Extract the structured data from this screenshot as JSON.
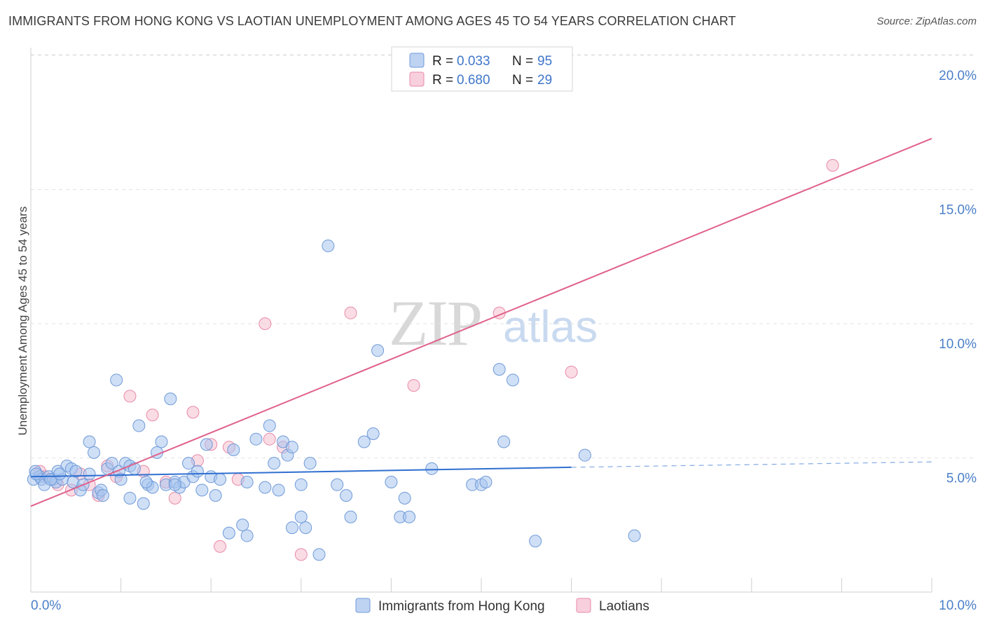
{
  "title": "IMMIGRANTS FROM HONG KONG VS LAOTIAN UNEMPLOYMENT AMONG AGES 45 TO 54 YEARS CORRELATION CHART",
  "source": "Source: ZipAtlas.com",
  "watermark": {
    "zip": "ZIP",
    "atlas": "atlas"
  },
  "colors": {
    "blue_fill": "#a8c4ee",
    "blue_stroke": "#6f9ad8",
    "blue_line": "#2f6fd0",
    "pink_fill": "#f6bfd0",
    "pink_stroke": "#e88aa8",
    "pink_line": "#e0608c",
    "tick_text": "#4a7fc8",
    "grid": "#e2e2e2"
  },
  "legend": {
    "blue": {
      "r_label": "R =",
      "r_value": "0.033",
      "n_label": "N =",
      "n_value": "95"
    },
    "pink": {
      "r_label": "R =",
      "r_value": "0.680",
      "n_label": "N =",
      "n_value": "29"
    }
  },
  "bottom_legend": {
    "blue": "Immigrants from Hong Kong",
    "pink": "Laotians"
  },
  "chart_data": {
    "type": "scatter",
    "title": "IMMIGRANTS FROM HONG KONG VS LAOTIAN UNEMPLOYMENT AMONG AGES 45 TO 54 YEARS CORRELATION CHART",
    "xlabel": "",
    "ylabel": "Unemployment Among Ages 45 to 54 years",
    "xlim": [
      0,
      10
    ],
    "ylim": [
      0,
      20.5
    ],
    "x_tick_labels": [
      "0.0%",
      "10.0%"
    ],
    "y_ticks": [
      5,
      10,
      15,
      20
    ],
    "y_tick_labels": [
      "5.0%",
      "10.0%",
      "15.0%",
      "20.0%"
    ],
    "grid": true,
    "series": [
      {
        "name": "Immigrants from Hong Kong",
        "R": 0.033,
        "N": 95,
        "trend": {
          "x0": 0,
          "y0": 4.3,
          "x1": 6.0,
          "y1": 4.65,
          "dash_to_x": 11,
          "dash_to_y": 4.9
        },
        "points": [
          [
            0.03,
            4.2
          ],
          [
            0.05,
            4.5
          ],
          [
            0.1,
            4.3
          ],
          [
            0.12,
            4.2
          ],
          [
            0.15,
            4.0
          ],
          [
            0.2,
            4.3
          ],
          [
            0.25,
            4.2
          ],
          [
            0.28,
            4.1
          ],
          [
            0.3,
            4.5
          ],
          [
            0.35,
            4.2
          ],
          [
            0.4,
            4.7
          ],
          [
            0.45,
            4.6
          ],
          [
            0.47,
            4.1
          ],
          [
            0.5,
            4.5
          ],
          [
            0.55,
            3.8
          ],
          [
            0.58,
            4.0
          ],
          [
            0.65,
            5.6
          ],
          [
            0.7,
            5.2
          ],
          [
            0.75,
            3.7
          ],
          [
            0.78,
            3.8
          ],
          [
            0.8,
            3.6
          ],
          [
            0.85,
            4.6
          ],
          [
            0.9,
            4.8
          ],
          [
            0.95,
            7.9
          ],
          [
            0.98,
            4.5
          ],
          [
            1.0,
            4.2
          ],
          [
            1.05,
            4.8
          ],
          [
            1.1,
            3.5
          ],
          [
            1.1,
            4.7
          ],
          [
            1.15,
            4.6
          ],
          [
            1.2,
            6.2
          ],
          [
            1.25,
            3.3
          ],
          [
            1.3,
            4.0
          ],
          [
            1.35,
            3.9
          ],
          [
            1.4,
            5.2
          ],
          [
            1.45,
            5.6
          ],
          [
            1.5,
            4.0
          ],
          [
            1.55,
            7.2
          ],
          [
            1.6,
            4.1
          ],
          [
            1.65,
            3.9
          ],
          [
            1.7,
            4.1
          ],
          [
            1.75,
            4.8
          ],
          [
            1.8,
            4.3
          ],
          [
            1.85,
            4.5
          ],
          [
            1.9,
            3.8
          ],
          [
            1.95,
            5.5
          ],
          [
            2.0,
            4.3
          ],
          [
            2.05,
            3.6
          ],
          [
            2.1,
            4.2
          ],
          [
            2.2,
            2.2
          ],
          [
            2.25,
            5.3
          ],
          [
            2.35,
            2.5
          ],
          [
            2.4,
            4.1
          ],
          [
            2.5,
            5.7
          ],
          [
            2.6,
            3.9
          ],
          [
            2.65,
            6.2
          ],
          [
            2.7,
            4.8
          ],
          [
            2.75,
            3.8
          ],
          [
            2.8,
            5.6
          ],
          [
            2.85,
            5.1
          ],
          [
            2.9,
            5.4
          ],
          [
            3.0,
            2.8
          ],
          [
            3.05,
            2.4
          ],
          [
            3.1,
            4.8
          ],
          [
            3.2,
            1.4
          ],
          [
            3.3,
            12.9
          ],
          [
            3.4,
            4.0
          ],
          [
            3.5,
            3.6
          ],
          [
            3.55,
            2.8
          ],
          [
            3.7,
            5.6
          ],
          [
            3.8,
            5.9
          ],
          [
            3.85,
            9.0
          ],
          [
            4.0,
            4.1
          ],
          [
            4.1,
            2.8
          ],
          [
            4.15,
            3.5
          ],
          [
            4.2,
            2.8
          ],
          [
            4.45,
            4.6
          ],
          [
            4.9,
            4.0
          ],
          [
            5.0,
            4.0
          ],
          [
            5.05,
            4.1
          ],
          [
            5.2,
            8.3
          ],
          [
            5.25,
            5.6
          ],
          [
            5.35,
            7.9
          ],
          [
            5.6,
            1.9
          ],
          [
            6.15,
            5.1
          ],
          [
            6.7,
            2.1
          ],
          [
            0.06,
            4.4
          ],
          [
            0.22,
            4.2
          ],
          [
            0.32,
            4.4
          ],
          [
            1.6,
            4.0
          ],
          [
            2.9,
            2.4
          ],
          [
            0.65,
            4.4
          ],
          [
            1.28,
            4.1
          ],
          [
            3.0,
            4.0
          ],
          [
            2.4,
            2.1
          ]
        ]
      },
      {
        "name": "Laotians",
        "R": 0.68,
        "N": 29,
        "trend": {
          "x0": 0,
          "y0": 3.2,
          "x1": 10,
          "y1": 16.9
        },
        "points": [
          [
            0.1,
            4.5
          ],
          [
            0.15,
            4.3
          ],
          [
            0.3,
            4.0
          ],
          [
            0.45,
            3.8
          ],
          [
            0.55,
            4.4
          ],
          [
            0.65,
            4.0
          ],
          [
            0.75,
            3.6
          ],
          [
            0.85,
            4.7
          ],
          [
            0.95,
            4.3
          ],
          [
            1.1,
            7.3
          ],
          [
            1.25,
            4.5
          ],
          [
            1.35,
            6.6
          ],
          [
            1.5,
            4.1
          ],
          [
            1.6,
            3.5
          ],
          [
            1.8,
            6.7
          ],
          [
            1.85,
            4.9
          ],
          [
            2.0,
            5.5
          ],
          [
            2.1,
            1.7
          ],
          [
            2.2,
            5.4
          ],
          [
            2.3,
            4.2
          ],
          [
            2.6,
            10.0
          ],
          [
            2.65,
            5.7
          ],
          [
            2.8,
            5.4
          ],
          [
            3.0,
            1.4
          ],
          [
            3.55,
            10.4
          ],
          [
            4.25,
            7.7
          ],
          [
            5.2,
            10.4
          ],
          [
            6.0,
            8.2
          ],
          [
            8.9,
            15.9
          ]
        ]
      }
    ]
  }
}
